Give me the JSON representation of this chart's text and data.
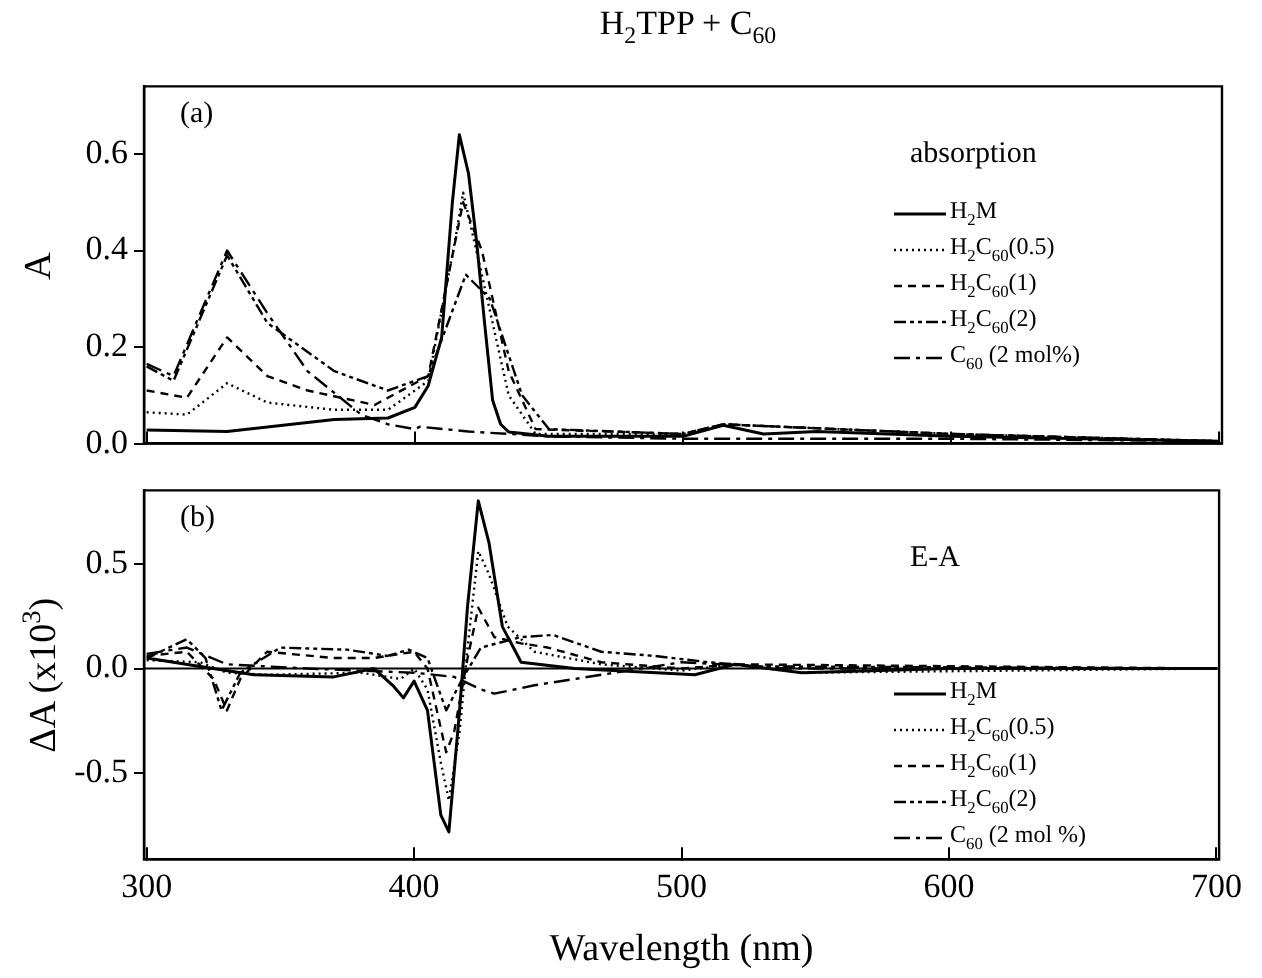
{
  "chart_data": [
    {
      "type": "line",
      "title": "H$_{2}$TPP + C$_{60}$",
      "ylabel": "A",
      "annotations": [
        "(a)",
        "absorption"
      ],
      "xlim": [
        299,
        701
      ],
      "xticks": [
        300,
        400,
        500,
        600,
        700
      ],
      "ylim": [
        0,
        0.74
      ],
      "yticks": [
        {
          "value": 0,
          "label": "0.0"
        },
        0.2,
        0.4,
        0.6
      ],
      "tick_labels": "y",
      "grid": false,
      "legend": "right",
      "marker": "none",
      "series": [
        {
          "name": "H$_{2}$M",
          "color": "#000000",
          "line_style": "solid",
          "x": [
            300,
            330,
            370,
            390,
            400,
            405,
            410,
            414,
            416.6,
            420,
            423,
            426,
            429,
            432,
            435,
            450,
            500,
            515,
            530,
            550,
            600,
            700
          ],
          "values": [
            0.028,
            0.025,
            0.05,
            0.053,
            0.075,
            0.12,
            0.22,
            0.5,
            0.64,
            0.56,
            0.42,
            0.25,
            0.09,
            0.04,
            0.024,
            0.015,
            0.015,
            0.038,
            0.02,
            0.025,
            0.015,
            0.005
          ]
        },
        {
          "name": "H$_{2}$C$_{60}$(0.5)",
          "color": "#000000",
          "line_style": "dotted",
          "x": [
            300,
            315,
            330,
            345,
            370,
            390,
            405,
            415,
            418,
            425,
            435,
            445,
            500,
            515,
            600,
            700
          ],
          "values": [
            0.065,
            0.06,
            0.125,
            0.085,
            0.07,
            0.07,
            0.13,
            0.42,
            0.52,
            0.35,
            0.1,
            0.02,
            0.02,
            0.04,
            0.02,
            0.005
          ]
        },
        {
          "name": "H$_{2}$C$_{60}$(1)",
          "color": "#000000",
          "line_style": "dashed",
          "x": [
            300,
            315,
            330,
            345,
            360,
            385,
            405,
            418,
            425,
            435,
            445,
            500,
            515,
            600,
            700
          ],
          "values": [
            0.11,
            0.095,
            0.22,
            0.14,
            0.11,
            0.08,
            0.14,
            0.5,
            0.4,
            0.15,
            0.03,
            0.02,
            0.04,
            0.02,
            0.005
          ]
        },
        {
          "name": "H$_{2}$C$_{60}$(2)",
          "color": "#000000",
          "line_style": "dashdotdot",
          "x": [
            300,
            310,
            330,
            345,
            370,
            390,
            405,
            419,
            428,
            440,
            450,
            500,
            515,
            600,
            700
          ],
          "values": [
            0.16,
            0.13,
            0.39,
            0.25,
            0.15,
            0.11,
            0.14,
            0.35,
            0.3,
            0.1,
            0.03,
            0.02,
            0.04,
            0.02,
            0.005
          ]
        },
        {
          "name": "C$_{60}$ (2 mol%)",
          "color": "#000000",
          "line_style": "dashdot",
          "x": [
            300,
            310,
            330,
            345,
            360,
            380,
            390,
            400,
            402,
            420,
            450,
            500,
            600,
            700
          ],
          "values": [
            0.165,
            0.14,
            0.4,
            0.27,
            0.15,
            0.06,
            0.04,
            0.03,
            0.035,
            0.025,
            0.015,
            0.01,
            0.01,
            0.005
          ]
        }
      ]
    },
    {
      "type": "line",
      "xlabel": "Wavelength (nm)",
      "ylabel": "ΔA (x10$^{3}$)",
      "annotations": [
        "(b)",
        "E-A"
      ],
      "xlim": [
        299,
        701
      ],
      "xticks": [
        300,
        400,
        500,
        600,
        700
      ],
      "ylim": [
        -0.91,
        0.85
      ],
      "yticks": [
        -0.5,
        {
          "value": 0,
          "label": "0.0"
        },
        0.5
      ],
      "grid": false,
      "legend": "bottom right",
      "marker": "none",
      "ref_lines": [
        {
          "axis": "y",
          "value": 0,
          "color": "#000000"
        }
      ],
      "series": [
        {
          "name": "H$_{2}$M",
          "color": "#000000",
          "line_style": "solid",
          "x": [
            300,
            320,
            340,
            370,
            385,
            392,
            396,
            400,
            405,
            410,
            413,
            417,
            420,
            424,
            428,
            433,
            440,
            460,
            505,
            520,
            545,
            600,
            700
          ],
          "values": [
            0.05,
            0.01,
            -0.03,
            -0.04,
            0,
            -0.08,
            -0.14,
            -0.06,
            -0.2,
            -0.7,
            -0.78,
            -0.2,
            0.3,
            0.8,
            0.6,
            0.2,
            0.03,
            0,
            -0.03,
            0.02,
            -0.02,
            0,
            0
          ]
        },
        {
          "name": "H$_{2}$C$_{60}$(0.5)",
          "color": "#000000",
          "line_style": "dotted",
          "x": [
            300,
            320,
            330,
            345,
            380,
            395,
            400,
            405,
            410,
            413,
            417,
            420,
            424,
            428,
            435,
            445,
            470,
            500,
            520,
            545,
            700
          ],
          "values": [
            0.04,
            0.03,
            -0.02,
            -0.03,
            -0.02,
            -0.05,
            0,
            -0.1,
            -0.45,
            -0.63,
            -0.3,
            0.1,
            0.56,
            0.45,
            0.2,
            0.08,
            0.02,
            -0.01,
            0.02,
            -0.02,
            0
          ]
        },
        {
          "name": "H$_{2}$C$_{60}$(1)",
          "color": "#000000",
          "line_style": "dashed",
          "x": [
            300,
            315,
            325,
            330,
            335,
            345,
            370,
            385,
            400,
            405,
            412,
            415,
            420,
            424,
            430,
            440,
            450,
            470,
            500,
            520,
            700
          ],
          "values": [
            0.06,
            0.08,
            -0.05,
            -0.2,
            -0.05,
            0.08,
            0.05,
            0.05,
            0.08,
            0,
            -0.4,
            -0.3,
            0.05,
            0.29,
            0.15,
            0.12,
            0.1,
            0.03,
            0,
            0.02,
            0
          ]
        },
        {
          "name": "H$_{2}$C$_{60}$(2)",
          "color": "#000000",
          "line_style": "dashdotdot",
          "x": [
            300,
            315,
            322,
            328,
            335,
            350,
            375,
            390,
            398,
            405,
            412,
            418,
            425,
            440,
            452,
            470,
            490,
            510,
            530,
            700
          ],
          "values": [
            0.05,
            0.14,
            0.05,
            -0.2,
            -0.02,
            0.1,
            0.09,
            0.06,
            0.09,
            0.05,
            -0.2,
            -0.05,
            0.1,
            0.15,
            0.16,
            0.08,
            0.06,
            0.03,
            0.01,
            0
          ]
        },
        {
          "name": "C$_{60}$ (2 mol %)",
          "color": "#000000",
          "line_style": "dashdot",
          "x": [
            300,
            315,
            330,
            360,
            400,
            415,
            425,
            430,
            445,
            460,
            480,
            500,
            515,
            540,
            700
          ],
          "values": [
            0.07,
            0.1,
            0.02,
            0,
            -0.02,
            -0.04,
            -0.1,
            -0.12,
            -0.08,
            -0.05,
            -0.01,
            0.03,
            0.02,
            0,
            0
          ]
        }
      ]
    }
  ]
}
